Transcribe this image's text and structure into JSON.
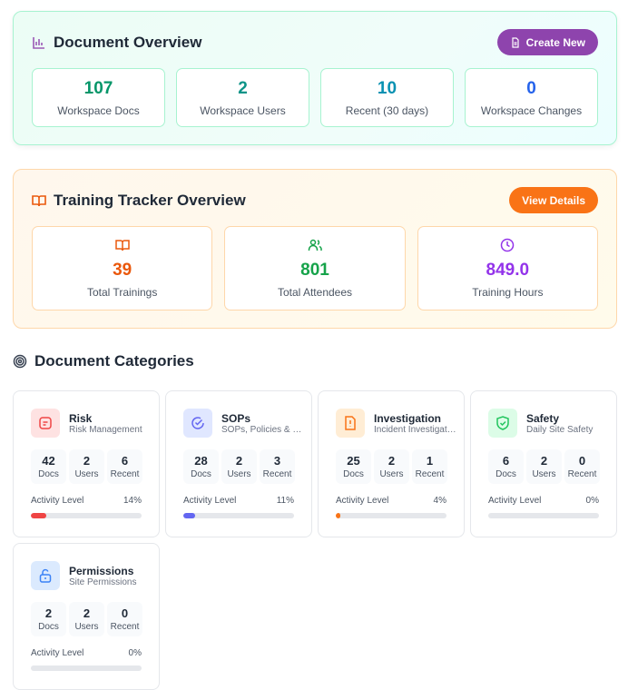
{
  "doc_overview": {
    "title": "Document Overview",
    "button": "Create New",
    "icon": "bar-chart-icon",
    "stats": [
      {
        "value": "107",
        "label": "Workspace Docs",
        "color": "#059669"
      },
      {
        "value": "2",
        "label": "Workspace Users",
        "color": "#0d9488"
      },
      {
        "value": "10",
        "label": "Recent (30 days)",
        "color": "#0891b2"
      },
      {
        "value": "0",
        "label": "Workspace Changes",
        "color": "#2563eb"
      }
    ]
  },
  "training": {
    "title": "Training Tracker Overview",
    "button": "View Details",
    "stats": [
      {
        "value": "39",
        "label": "Total Trainings",
        "color": "#ea580c"
      },
      {
        "value": "801",
        "label": "Total Attendees",
        "color": "#16a34a"
      },
      {
        "value": "849.0",
        "label": "Training Hours",
        "color": "#9333ea"
      }
    ]
  },
  "categories": {
    "title": "Document Categories",
    "metric_labels": [
      "Docs",
      "Users",
      "Recent"
    ],
    "activity_label": "Activity Level",
    "items": [
      {
        "name": "Risk",
        "desc": "Risk Management",
        "docs": "42",
        "users": "2",
        "recent": "6",
        "activity": "14%",
        "pct": 14,
        "color": "#ef4444",
        "bg": "#fee2e2"
      },
      {
        "name": "SOPs",
        "desc": "SOPs, Policies & Procedures",
        "docs": "28",
        "users": "2",
        "recent": "3",
        "activity": "11%",
        "pct": 11,
        "color": "#6366f1",
        "bg": "#e0e7ff"
      },
      {
        "name": "Investigation",
        "desc": "Incident Investigation",
        "docs": "25",
        "users": "2",
        "recent": "1",
        "activity": "4%",
        "pct": 4,
        "color": "#f97316",
        "bg": "#ffedd5"
      },
      {
        "name": "Safety",
        "desc": "Daily Site Safety",
        "docs": "6",
        "users": "2",
        "recent": "0",
        "activity": "0%",
        "pct": 0,
        "color": "#22c55e",
        "bg": "#dcfce7"
      },
      {
        "name": "Permissions",
        "desc": "Site Permissions",
        "docs": "2",
        "users": "2",
        "recent": "0",
        "activity": "0%",
        "pct": 0,
        "color": "#3b82f6",
        "bg": "#dbeafe"
      }
    ]
  }
}
